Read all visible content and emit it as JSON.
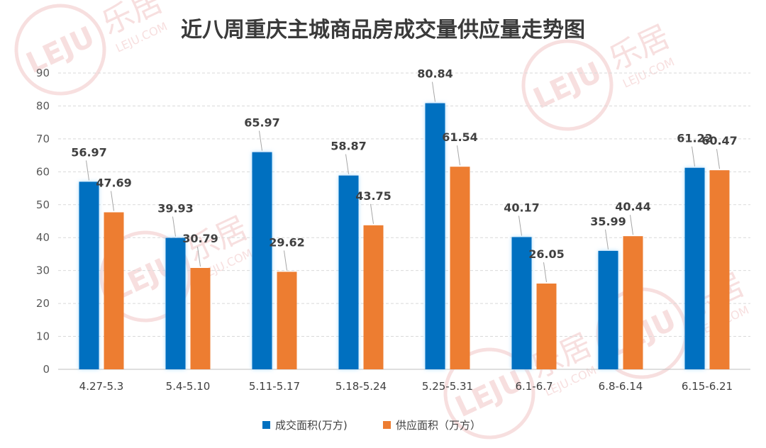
{
  "chart_data": {
    "type": "bar",
    "title": "近八周重庆主城商品房成交量供应量走势图",
    "categories": [
      "4.27-5.3",
      "5.4-5.10",
      "5.11-5.17",
      "5.18-5.24",
      "5.25-5.31",
      "6.1-6.7",
      "6.8-6.14",
      "6.15-6.21"
    ],
    "series": [
      {
        "name": "成交面积(万方)",
        "color": "#0070c0",
        "values": [
          56.97,
          39.93,
          65.97,
          58.87,
          80.84,
          40.17,
          35.99,
          61.22
        ]
      },
      {
        "name": "供应面积（万方）",
        "color": "#ed7d31",
        "values": [
          47.69,
          30.79,
          29.62,
          43.75,
          61.54,
          26.05,
          40.44,
          60.47
        ]
      }
    ],
    "ylim": [
      0,
      90
    ],
    "yticks": [
      0,
      10,
      20,
      30,
      40,
      50,
      60,
      70,
      80,
      90
    ],
    "grid": true,
    "legend": "bottom",
    "xlabel": "",
    "ylabel": ""
  },
  "watermark": {
    "brand": "LEJU",
    "cn": "乐居",
    "site": "LEJU.COM",
    "color": "#f2c6c6"
  }
}
